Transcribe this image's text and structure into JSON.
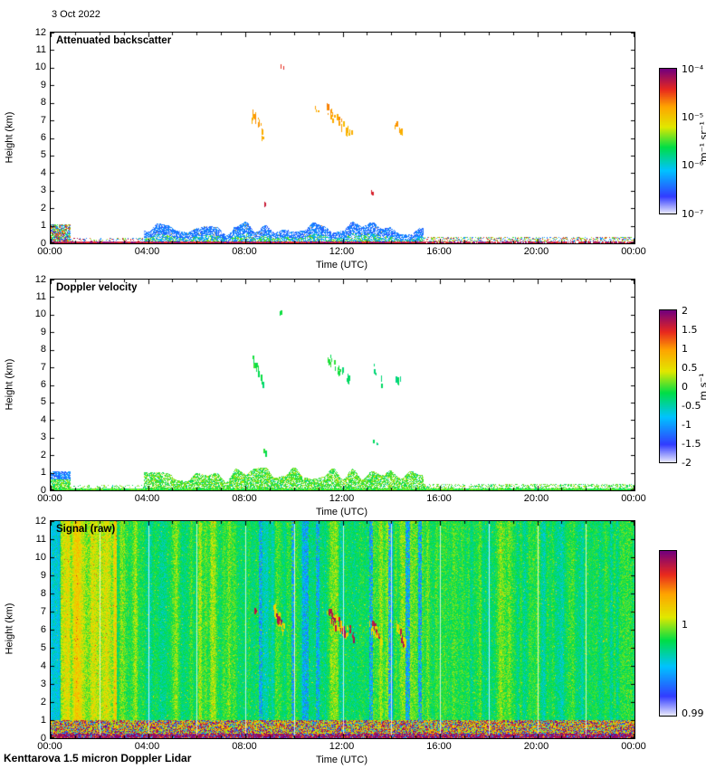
{
  "header": {
    "date_label": "3 Oct 2022",
    "footer": "Kenttarova 1.5 micron Doppler Lidar"
  },
  "chart_data": [
    {
      "type": "heatmap",
      "title": "Attenuated backscatter",
      "xlabel": "Time (UTC)",
      "ylabel": "Height (km)",
      "x_range_hours": [
        0,
        24
      ],
      "y_range_km": [
        0,
        12
      ],
      "x_ticks": [
        "00:00",
        "04:00",
        "08:00",
        "12:00",
        "16:00",
        "20:00",
        "00:00"
      ],
      "y_ticks": [
        "0",
        "1",
        "2",
        "3",
        "4",
        "5",
        "6",
        "7",
        "8",
        "9",
        "10",
        "11",
        "12"
      ],
      "colorbar": {
        "unit": "m⁻¹ sr⁻¹",
        "scale": "log",
        "range_top_to_bottom": [
          "10⁻⁴",
          "10⁻⁷"
        ],
        "ticks": [
          {
            "label": "10⁻⁴",
            "pos": 0
          },
          {
            "label": "10⁻⁵",
            "pos": 0.3333
          },
          {
            "label": "10⁻⁶",
            "pos": 0.6667
          },
          {
            "label": "10⁻⁷",
            "pos": 1
          }
        ]
      },
      "content": {
        "mode": "backscatter",
        "surface_layer": "Blue/green aerosol speckle layer below ~1.2 km, strongest 04:00-15:20; red surface echo line across bottom; sparse mixed returns 00:00-04:00 and after 15:20",
        "features": [
          {
            "desc": "cloud streak",
            "t": 8.5,
            "dt": 0.25,
            "h": 7.0,
            "dh": 1.0,
            "v": 0.74,
            "n": 16
          },
          {
            "desc": "cloud bit",
            "t": 8.68,
            "dt": 0.07,
            "h": 6.1,
            "dh": 0.3,
            "v": 0.72,
            "n": 4
          },
          {
            "desc": "high cloud dot",
            "t": 9.5,
            "dt": 0.07,
            "h": 10.15,
            "dh": 0.22,
            "v": 0.87,
            "n": 3
          },
          {
            "desc": "low cloud marks",
            "t": 8.78,
            "dt": 0.05,
            "h": 2.35,
            "dh": 0.35,
            "v": 0.9,
            "n": 4
          },
          {
            "desc": "cloud bit",
            "t": 10.9,
            "dt": 0.08,
            "h": 7.7,
            "dh": 0.28,
            "v": 0.73,
            "n": 3
          },
          {
            "desc": "cloud streaks",
            "t": 11.65,
            "dt": 0.35,
            "h": 7.3,
            "dh": 1.0,
            "v": 0.75,
            "n": 20
          },
          {
            "desc": "cloud streaks",
            "t": 12.15,
            "dt": 0.2,
            "h": 6.6,
            "dh": 0.7,
            "v": 0.72,
            "n": 10
          },
          {
            "desc": "low dot",
            "t": 13.2,
            "dt": 0.04,
            "h": 3.0,
            "dh": 0.22,
            "v": 0.86,
            "n": 2
          },
          {
            "desc": "cloud streak",
            "t": 14.3,
            "dt": 0.18,
            "h": 6.6,
            "dh": 0.8,
            "v": 0.73,
            "n": 10
          }
        ]
      }
    },
    {
      "type": "heatmap",
      "title": "Doppler velocity",
      "xlabel": "Time (UTC)",
      "ylabel": "Height (km)",
      "x_range_hours": [
        0,
        24
      ],
      "y_range_km": [
        0,
        12
      ],
      "x_ticks": [
        "00:00",
        "04:00",
        "08:00",
        "12:00",
        "16:00",
        "20:00",
        "00:00"
      ],
      "y_ticks": [
        "0",
        "1",
        "2",
        "3",
        "4",
        "5",
        "6",
        "7",
        "8",
        "9",
        "10",
        "11",
        "12"
      ],
      "colorbar": {
        "unit": "m s⁻¹",
        "scale": "linear",
        "range_top_to_bottom": [
          "2",
          "-2"
        ],
        "ticks": [
          {
            "label": "2",
            "pos": 0
          },
          {
            "label": "1.5",
            "pos": 0.125
          },
          {
            "label": "1",
            "pos": 0.25
          },
          {
            "label": "0.5",
            "pos": 0.375
          },
          {
            "label": "0",
            "pos": 0.5
          },
          {
            "label": "-0.5",
            "pos": 0.625
          },
          {
            "label": "-1",
            "pos": 0.75
          },
          {
            "label": "-1.5",
            "pos": 0.875
          },
          {
            "label": "-2",
            "pos": 1
          }
        ]
      },
      "content": {
        "mode": "velocity",
        "surface_layer": "Near-zero (green) velocities in boundary layer below ~1.2 km; blue downdraft patch near 00:00-00:45 at ~1 km",
        "features": [
          {
            "desc": "cloud streak",
            "t": 8.5,
            "dt": 0.25,
            "h": 7.0,
            "dh": 1.0,
            "v": 0.47,
            "n": 14
          },
          {
            "desc": "cloud bit",
            "t": 8.68,
            "dt": 0.07,
            "h": 6.3,
            "dh": 0.3,
            "v": 0.45,
            "n": 4
          },
          {
            "desc": "high cloud dot",
            "t": 9.5,
            "dt": 0.07,
            "h": 10.15,
            "dh": 0.22,
            "v": 0.46,
            "n": 3
          },
          {
            "desc": "low cloud marks",
            "t": 8.78,
            "dt": 0.05,
            "h": 2.35,
            "dh": 0.3,
            "v": 0.46,
            "n": 4
          },
          {
            "desc": "cloud streaks",
            "t": 11.6,
            "dt": 0.3,
            "h": 7.3,
            "dh": 1.0,
            "v": 0.47,
            "n": 16
          },
          {
            "desc": "cloud streaks",
            "t": 12.1,
            "dt": 0.2,
            "h": 6.6,
            "dh": 0.7,
            "v": 0.44,
            "n": 8
          },
          {
            "desc": "low dot",
            "t": 13.35,
            "dt": 0.1,
            "h": 2.8,
            "dh": 0.3,
            "v": 0.42,
            "n": 3
          },
          {
            "desc": "cloud streak",
            "t": 13.4,
            "dt": 0.2,
            "h": 6.7,
            "dh": 0.9,
            "v": 0.44,
            "n": 8
          },
          {
            "desc": "cloud streak",
            "t": 14.3,
            "dt": 0.15,
            "h": 6.4,
            "dh": 0.7,
            "v": 0.43,
            "n": 6
          }
        ]
      }
    },
    {
      "type": "heatmap",
      "title": "Signal (raw)",
      "xlabel": "Time (UTC)",
      "ylabel": "Height (km)",
      "x_range_hours": [
        0,
        24
      ],
      "y_range_km": [
        0,
        12
      ],
      "x_ticks": [
        "00:00",
        "04:00",
        "08:00",
        "12:00",
        "16:00",
        "20:00",
        "00:00"
      ],
      "y_ticks": [
        "0",
        "1",
        "2",
        "3",
        "4",
        "5",
        "6",
        "7",
        "8",
        "9",
        "10",
        "11",
        "12"
      ],
      "colorbar": {
        "unit": "",
        "scale": "linear",
        "range_top_to_bottom": [
          "",
          "0.99"
        ],
        "ticks": [
          {
            "label": "1",
            "pos": 0.45
          },
          {
            "label": "0.99",
            "pos": 0.985
          }
        ]
      },
      "content": {
        "mode": "signal",
        "background": "Noisy green raw-signal field (~1.0) with vertical column striping over full height; yellow-orange enhanced columns 00:30-02:40; purple/red/blue saturated band below ~1 km; white gridlines every 2 h",
        "gridline_interval_hours": 2,
        "stripes": [
          {
            "desc": "dark blue column",
            "t": 8.62,
            "dt": 0.05
          },
          {
            "desc": "dark blue column",
            "t": 9.95,
            "dt": 0.06
          },
          {
            "desc": "dark blue column",
            "t": 10.45,
            "dt": 0.1
          },
          {
            "desc": "dark blue column",
            "t": 10.95,
            "dt": 0.05
          },
          {
            "desc": "dark blue column",
            "t": 13.15,
            "dt": 0.07
          },
          {
            "desc": "dark blue column",
            "t": 13.95,
            "dt": 0.08
          },
          {
            "desc": "dark blue column",
            "t": 14.65,
            "dt": 0.07
          },
          {
            "desc": "dark blue column",
            "t": 15.15,
            "dt": 0.05
          }
        ],
        "features": [
          {
            "desc": "yellow halo",
            "t": 9.35,
            "dt": 0.2,
            "h": 6.7,
            "dh": 1.0,
            "v": 0.64,
            "n": 30
          },
          {
            "desc": "yellow halo",
            "t": 11.8,
            "dt": 0.45,
            "h": 6.4,
            "dh": 1.1,
            "v": 0.64,
            "n": 40
          },
          {
            "desc": "yellow halo",
            "t": 13.35,
            "dt": 0.25,
            "h": 6.0,
            "dh": 1.0,
            "v": 0.64,
            "n": 25
          },
          {
            "desc": "yellow halo",
            "t": 14.4,
            "dt": 0.2,
            "h": 5.8,
            "dh": 0.9,
            "v": 0.64,
            "n": 20
          },
          {
            "desc": "maroon streak",
            "t": 8.35,
            "dt": 0.06,
            "h": 7.2,
            "dh": 0.4,
            "v": 0.93,
            "n": 4
          },
          {
            "desc": "maroon streak",
            "t": 9.35,
            "dt": 0.12,
            "h": 6.7,
            "dh": 0.8,
            "v": 0.93,
            "n": 12
          },
          {
            "desc": "maroon streak",
            "t": 11.55,
            "dt": 0.15,
            "h": 6.8,
            "dh": 0.9,
            "v": 0.93,
            "n": 14
          },
          {
            "desc": "maroon streak",
            "t": 11.95,
            "dt": 0.15,
            "h": 6.2,
            "dh": 0.9,
            "v": 0.93,
            "n": 14
          },
          {
            "desc": "maroon streak",
            "t": 12.35,
            "dt": 0.1,
            "h": 5.9,
            "dh": 0.6,
            "v": 0.93,
            "n": 8
          },
          {
            "desc": "maroon streak",
            "t": 13.35,
            "dt": 0.15,
            "h": 6.1,
            "dh": 0.8,
            "v": 0.93,
            "n": 10
          },
          {
            "desc": "maroon streak",
            "t": 14.4,
            "dt": 0.12,
            "h": 5.7,
            "dh": 0.7,
            "v": 0.93,
            "n": 8
          }
        ]
      }
    }
  ]
}
